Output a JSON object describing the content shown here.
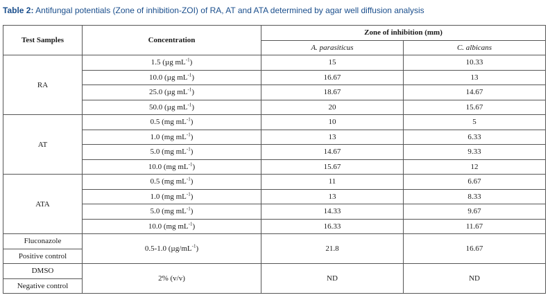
{
  "caption": {
    "label": "Table 2:",
    "text": " Antifungal potentials (Zone of inhibition-ZOI) of RA, AT and ATA determined by agar well diffusion analysis"
  },
  "headers": {
    "test_samples": "Test Samples",
    "concentration": "Concentration",
    "zone": "Zone of inhibition (mm)",
    "col_a": "A. parasiticus",
    "col_c": "C. albicans"
  },
  "groups": [
    {
      "name": "RA",
      "rows": [
        {
          "conc": "1.5 (µg mL",
          "sup": "-1",
          "close": ")",
          "a": "15",
          "c": "10.33"
        },
        {
          "conc": "10.0 (µg mL",
          "sup": "-1",
          "close": ")",
          "a": "16.67",
          "c": "13"
        },
        {
          "conc": "25.0 (µg mL",
          "sup": "-1",
          "close": ")",
          "a": "18.67",
          "c": "14.67"
        },
        {
          "conc": "50.0 (µg mL",
          "sup": "-1",
          "close": ")",
          "a": "20",
          "c": "15.67"
        }
      ]
    },
    {
      "name": "AT",
      "rows": [
        {
          "conc": "0.5 (mg mL",
          "sup": "-1",
          "close": ")",
          "a": "10",
          "c": "5"
        },
        {
          "conc": "1.0 (mg mL",
          "sup": "-1",
          "close": ")",
          "a": "13",
          "c": "6.33"
        },
        {
          "conc": "5.0 (mg mL",
          "sup": "-1",
          "close": ")",
          "a": "14.67",
          "c": "9.33"
        },
        {
          "conc": "10.0 (mg mL",
          "sup": "-1",
          "close": ")",
          "a": "15.67",
          "c": "12"
        }
      ]
    },
    {
      "name": "ATA",
      "rows": [
        {
          "conc": "0.5 (mg mL",
          "sup": "-1",
          "close": ")",
          "a": "11",
          "c": "6.67"
        },
        {
          "conc": "1.0 (mg mL",
          "sup": "-1",
          "close": ")",
          "a": "13",
          "c": "8.33"
        },
        {
          "conc": "5.0 (mg mL",
          "sup": "-1",
          "close": ")",
          "a": "14.33",
          "c": "9.67"
        },
        {
          "conc": "10.0 (mg mL",
          "sup": "-1",
          "close": ")",
          "a": "16.33",
          "c": "11.67"
        }
      ]
    }
  ],
  "controls": [
    {
      "line1": "Fluconazole",
      "line2": "Positive control",
      "conc": "0.5-1.0 (µg/mL",
      "sup": "-1",
      "close": ")",
      "a": "21.8",
      "c": "16.67"
    },
    {
      "line1": "DMSO",
      "line2": "Negative control",
      "conc": "2% (v/v)",
      "sup": "",
      "close": "",
      "a": "ND",
      "c": "ND"
    }
  ]
}
